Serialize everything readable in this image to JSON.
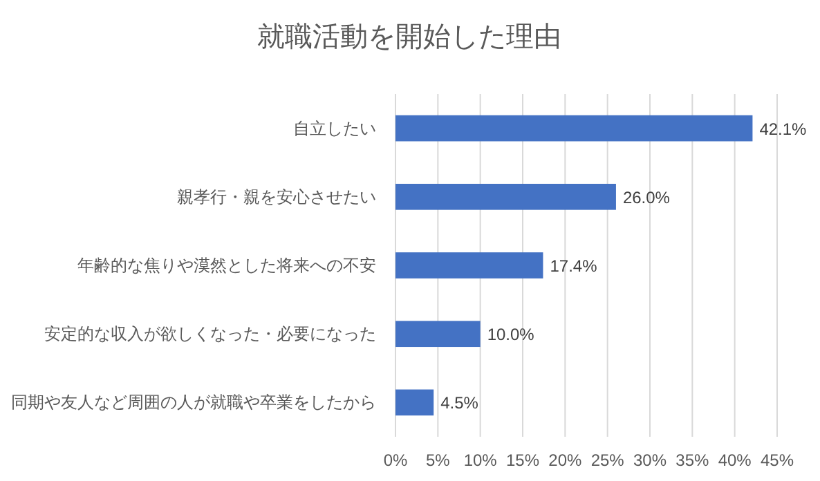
{
  "chart_data": {
    "type": "bar",
    "orientation": "horizontal",
    "title": "就職活動を開始した理由",
    "categories": [
      "自立したい",
      "親孝行・親を安心させたい",
      "年齢的な焦りや漠然とした将来への不安",
      "安定的な収入が欲しくなった・必要になった",
      "同期や友人など周囲の人が就職や卒業をしたから"
    ],
    "values": [
      42.1,
      26.0,
      17.4,
      10.0,
      4.5
    ],
    "value_labels": [
      "42.1%",
      "26.0%",
      "17.4%",
      "10.0%",
      "4.5%"
    ],
    "color": "#4472c4",
    "xlim": [
      0,
      45
    ],
    "xticks": [
      {
        "value": 0,
        "label": "0%"
      },
      {
        "value": 5,
        "label": "5%"
      },
      {
        "value": 10,
        "label": "10%"
      },
      {
        "value": 15,
        "label": "15%"
      },
      {
        "value": 20,
        "label": "20%"
      },
      {
        "value": 25,
        "label": "25%"
      },
      {
        "value": 30,
        "label": "30%"
      },
      {
        "value": 35,
        "label": "35%"
      },
      {
        "value": 40,
        "label": "40%"
      },
      {
        "value": 45,
        "label": "45%"
      }
    ],
    "grid": "x"
  }
}
